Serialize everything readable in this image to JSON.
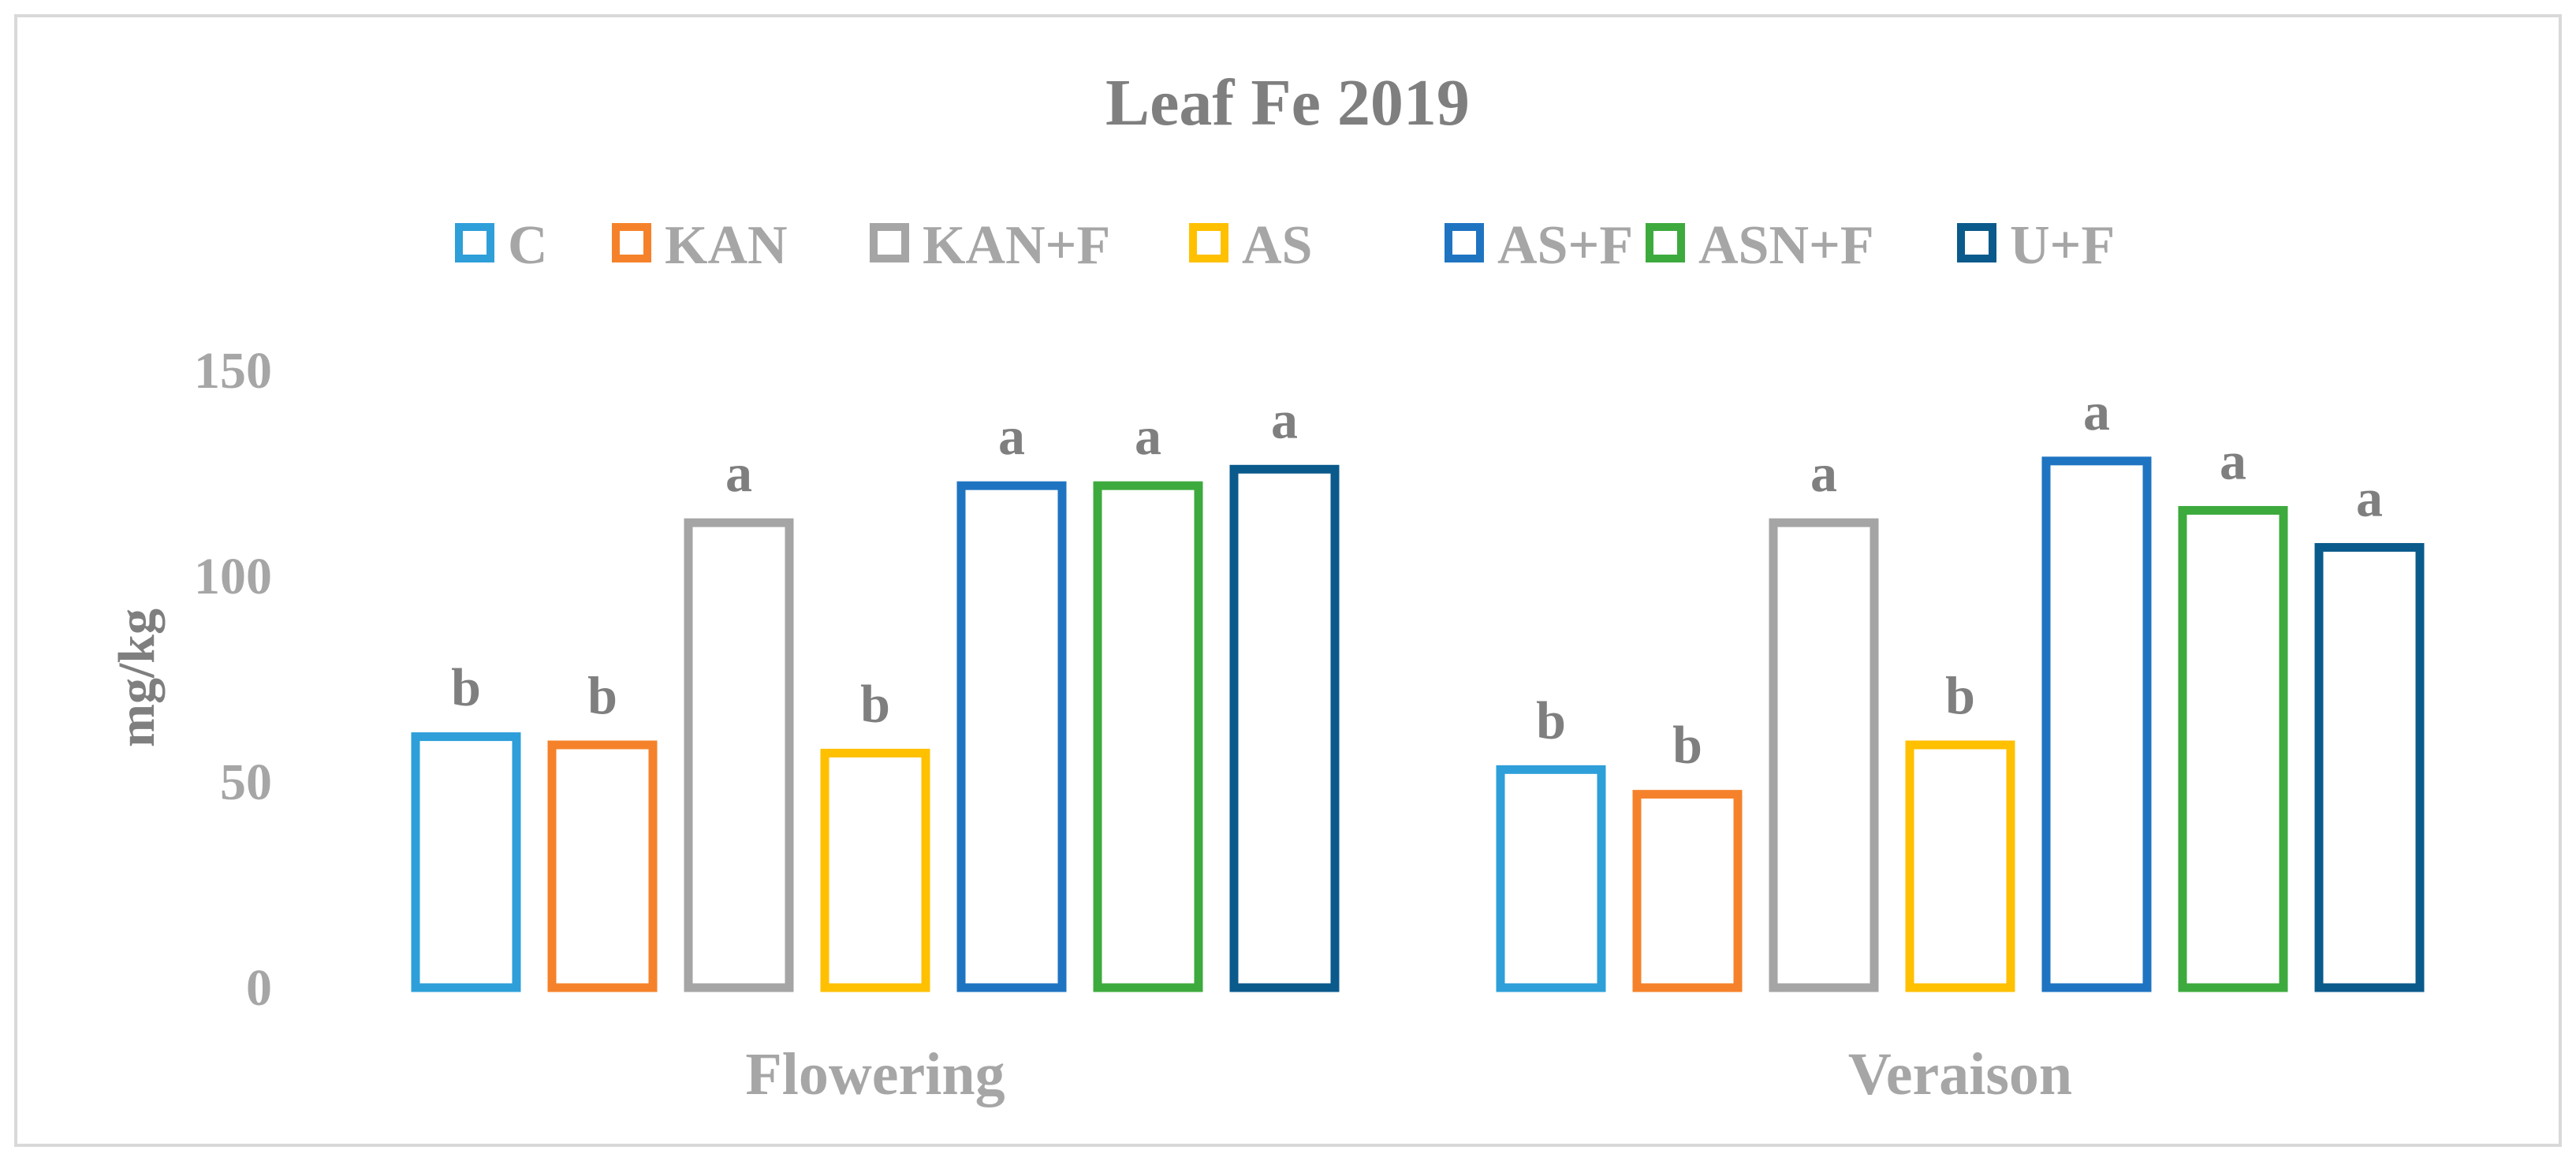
{
  "chart_data": {
    "type": "bar",
    "title": "Leaf Fe 2019",
    "xlabel": "",
    "ylabel": "mg/kg",
    "ylim": [
      0,
      150
    ],
    "yticks": [
      "0",
      "50",
      "100",
      "150"
    ],
    "grid": false,
    "legend_position": "top",
    "categories": [
      "Flowering",
      "Veraison"
    ],
    "series": [
      {
        "name": "C",
        "color": "#2E9FD9",
        "values": [
          61,
          53
        ],
        "letters": [
          "b",
          "b"
        ]
      },
      {
        "name": "KAN",
        "color": "#F5822A",
        "values": [
          59,
          47
        ],
        "letters": [
          "b",
          "b"
        ]
      },
      {
        "name": "KAN+F",
        "color": "#A5A5A5",
        "values": [
          113,
          113
        ],
        "letters": [
          "a",
          "a"
        ]
      },
      {
        "name": "AS",
        "color": "#FFC000",
        "values": [
          57,
          59
        ],
        "letters": [
          "b",
          "b"
        ]
      },
      {
        "name": "AS+F",
        "color": "#1F74C2",
        "values": [
          122,
          128
        ],
        "letters": [
          "a",
          "a"
        ]
      },
      {
        "name": "ASN+F",
        "color": "#3DAA3D",
        "values": [
          122,
          116
        ],
        "letters": [
          "a",
          "a"
        ]
      },
      {
        "name": "U+F",
        "color": "#0A5A8C",
        "values": [
          126,
          107
        ],
        "letters": [
          "a",
          "a"
        ]
      }
    ]
  }
}
